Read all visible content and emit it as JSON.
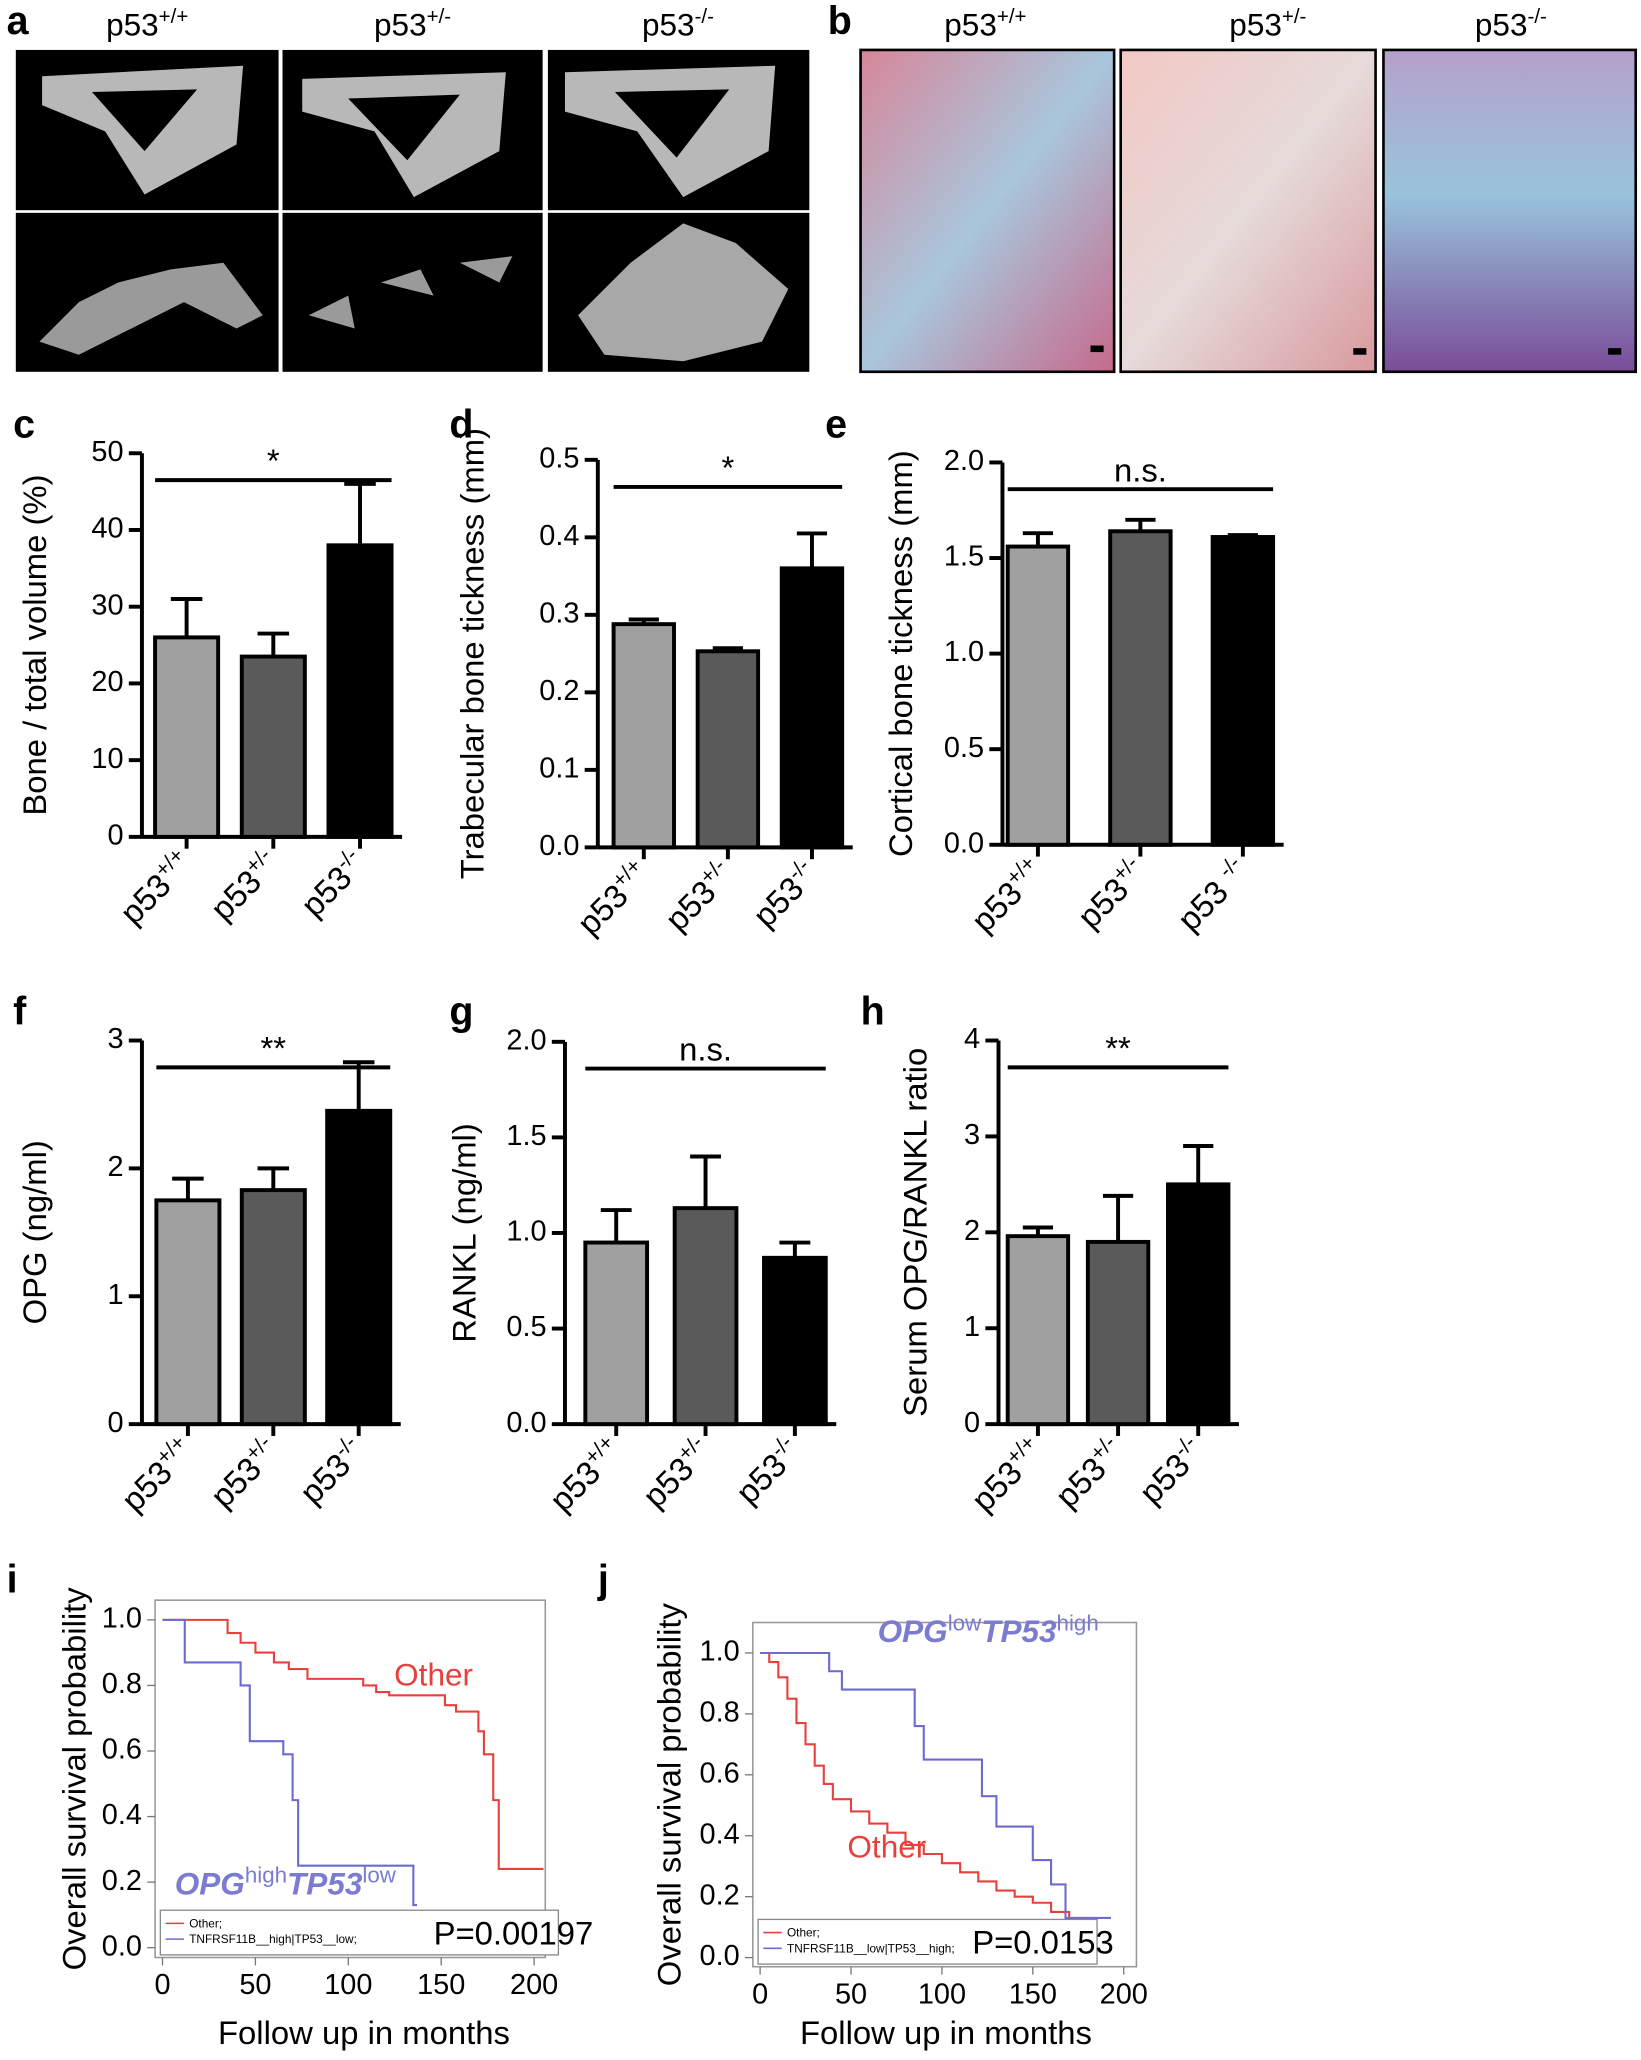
{
  "panel_a": {
    "label": "a",
    "headers": [
      "p53+/+",
      "p53+/-",
      "p53-/-"
    ]
  },
  "panel_b": {
    "label": "b",
    "headers": [
      "p53+/+",
      "p53+/-",
      "p53-/-"
    ]
  },
  "chart_data": [
    {
      "type": "bar",
      "label": "c",
      "y_label": "Bone / total volume (%)",
      "categories": [
        "p53+/+",
        "p53+/-",
        "p53-/-"
      ],
      "values": [
        26,
        23.5,
        38
      ],
      "errors": [
        5,
        3,
        8
      ],
      "colors": [
        "#a0a0a0",
        "#5a5a5a",
        "#000000"
      ],
      "ylim": [
        0,
        50
      ],
      "yticks": [
        0,
        10,
        20,
        30,
        40,
        50
      ],
      "annotation": "*"
    },
    {
      "type": "bar",
      "label": "d",
      "y_label": "Trabecular bone tickness (mm)",
      "categories": [
        "p53+/+",
        "p53+/-",
        "p53-/-"
      ],
      "values": [
        0.288,
        0.253,
        0.36
      ],
      "errors": [
        0.006,
        0.004,
        0.045
      ],
      "colors": [
        "#a0a0a0",
        "#5a5a5a",
        "#000000"
      ],
      "ylim": [
        0,
        0.5
      ],
      "yticks": [
        {
          "value": 0,
          "label": "0.0"
        },
        0.1,
        0.2,
        0.3,
        0.4,
        0.5
      ],
      "annotation": "*"
    },
    {
      "type": "bar",
      "label": "e",
      "y_label": "Cortical bone tickness (mm)",
      "categories": [
        "p53+/+",
        "p53+/-",
        "p53 -/-"
      ],
      "values": [
        1.56,
        1.64,
        1.61
      ],
      "errors": [
        0.07,
        0.06,
        0.01
      ],
      "colors": [
        "#a0a0a0",
        "#5a5a5a",
        "#000000"
      ],
      "ylim": [
        0,
        2
      ],
      "yticks": [
        {
          "value": 0,
          "label": "0.0"
        },
        0.5,
        {
          "value": 1,
          "label": "1.0"
        },
        1.5,
        {
          "value": 2,
          "label": "2.0"
        }
      ],
      "annotation": "n.s."
    },
    {
      "type": "bar",
      "label": "f",
      "y_label": "OPG (ng/ml)",
      "categories": [
        "p53+/+",
        "p53+/-",
        "p53-/-"
      ],
      "values": [
        1.75,
        1.83,
        2.45
      ],
      "errors": [
        0.17,
        0.17,
        0.38
      ],
      "colors": [
        "#a0a0a0",
        "#5a5a5a",
        "#000000"
      ],
      "ylim": [
        0,
        3
      ],
      "yticks": [
        0,
        1,
        2,
        3
      ],
      "annotation": "**"
    },
    {
      "type": "bar",
      "label": "g",
      "y_label": "RANKL (ng/ml)",
      "categories": [
        "p53+/+",
        "p53+/-",
        "p53-/-"
      ],
      "values": [
        0.95,
        1.13,
        0.87
      ],
      "errors": [
        0.17,
        0.27,
        0.08
      ],
      "colors": [
        "#a0a0a0",
        "#5a5a5a",
        "#000000"
      ],
      "ylim": [
        0,
        2
      ],
      "yticks": [
        {
          "value": 0,
          "label": "0.0"
        },
        0.5,
        {
          "value": 1,
          "label": "1.0"
        },
        1.5,
        {
          "value": 2,
          "label": "2.0"
        }
      ],
      "annotation": "n.s."
    },
    {
      "type": "bar",
      "label": "h",
      "y_label": "Serum OPG/RANKL ratio",
      "categories": [
        "p53+/+",
        "p53+/-",
        "p53-/-"
      ],
      "values": [
        1.96,
        1.9,
        2.5
      ],
      "errors": [
        0.09,
        0.48,
        0.4
      ],
      "colors": [
        "#a0a0a0",
        "#5a5a5a",
        "#000000"
      ],
      "ylim": [
        0,
        4
      ],
      "yticks": [
        0,
        1,
        2,
        3,
        4
      ],
      "annotation": "**"
    },
    {
      "type": "line",
      "label": "i",
      "y_label": "Overall survival probability",
      "x_label": "Follow up in months",
      "xlim": [
        -4,
        206
      ],
      "ylim": [
        -0.03,
        1.06
      ],
      "xticks": [
        0,
        50,
        100,
        150,
        200
      ],
      "yticks": [
        {
          "value": 0,
          "label": "0.0"
        },
        0.2,
        0.4,
        0.6,
        0.8,
        {
          "value": 1,
          "label": "1.0"
        }
      ],
      "p_value": "P=0.00197",
      "annotations": [
        {
          "parts": [
            "Other"
          ],
          "color": "#e8403c"
        },
        {
          "parts": [
            "OPG",
            "high",
            "TP53",
            "low"
          ],
          "color": "#7b7bd0"
        }
      ],
      "series": [
        {
          "name": "Other;",
          "color": "#e8403c",
          "x": [
            0,
            35,
            35,
            42,
            42,
            50,
            50,
            60,
            60,
            68,
            68,
            78,
            78,
            108,
            108,
            115,
            115,
            122,
            122,
            152,
            152,
            158,
            158,
            170,
            170,
            173,
            173,
            178,
            178,
            181,
            181,
            205
          ],
          "values": [
            1,
            1,
            0.96,
            0.96,
            0.93,
            0.93,
            0.9,
            0.9,
            0.87,
            0.87,
            0.85,
            0.85,
            0.82,
            0.82,
            0.8,
            0.8,
            0.78,
            0.78,
            0.77,
            0.77,
            0.74,
            0.74,
            0.72,
            0.72,
            0.66,
            0.66,
            0.59,
            0.59,
            0.45,
            0.45,
            0.24,
            0.24
          ]
        },
        {
          "name": "TNFRSF11B__high|TP53__low;",
          "color": "#6b6bd0",
          "x": [
            0,
            12,
            12,
            42,
            42,
            47,
            47,
            65,
            65,
            70,
            70,
            73,
            73,
            135,
            135,
            137
          ],
          "values": [
            1,
            1,
            0.87,
            0.87,
            0.8,
            0.8,
            0.63,
            0.63,
            0.59,
            0.59,
            0.45,
            0.45,
            0.25,
            0.25,
            0.13,
            0.13
          ]
        }
      ]
    },
    {
      "type": "line",
      "label": "j",
      "y_label": "Overall survival probability",
      "x_label": "Follow up in months",
      "xlim": [
        -4,
        207
      ],
      "ylim": [
        -0.03,
        1.1
      ],
      "xticks": [
        0,
        50,
        100,
        150,
        200
      ],
      "yticks": [
        {
          "value": 0,
          "label": "0.0"
        },
        0.2,
        0.4,
        0.6,
        0.8,
        {
          "value": 1,
          "label": "1.0"
        }
      ],
      "p_value": "P=0.0153",
      "annotations": [
        {
          "parts": [
            "OPG",
            "low",
            "TP53",
            "high"
          ],
          "color": "#7b7bd0"
        },
        {
          "parts": [
            "Other"
          ],
          "color": "#e8403c"
        }
      ],
      "series": [
        {
          "name": "Other;",
          "color": "#e8403c",
          "x": [
            0,
            5,
            5,
            10,
            10,
            15,
            15,
            20,
            20,
            25,
            25,
            30,
            30,
            35,
            35,
            40,
            40,
            50,
            50,
            60,
            60,
            70,
            70,
            80,
            80,
            90,
            90,
            100,
            100,
            110,
            110,
            120,
            120,
            130,
            130,
            140,
            140,
            150,
            150,
            160,
            160,
            170,
            170,
            185
          ],
          "values": [
            1,
            1,
            0.97,
            0.97,
            0.92,
            0.92,
            0.85,
            0.85,
            0.77,
            0.77,
            0.7,
            0.7,
            0.63,
            0.63,
            0.57,
            0.57,
            0.52,
            0.52,
            0.48,
            0.48,
            0.44,
            0.44,
            0.41,
            0.41,
            0.37,
            0.37,
            0.34,
            0.34,
            0.31,
            0.31,
            0.28,
            0.28,
            0.25,
            0.25,
            0.22,
            0.22,
            0.2,
            0.2,
            0.18,
            0.18,
            0.15,
            0.15,
            0.1,
            0.1
          ]
        },
        {
          "name": "TNFRSF11B__low|TP53__high;",
          "color": "#6b6bd0",
          "x": [
            0,
            38,
            38,
            45,
            45,
            85,
            85,
            90,
            90,
            122,
            122,
            130,
            130,
            150,
            150,
            160,
            160,
            168,
            168,
            193
          ],
          "values": [
            1,
            1,
            0.94,
            0.94,
            0.88,
            0.88,
            0.76,
            0.76,
            0.65,
            0.65,
            0.53,
            0.53,
            0.43,
            0.43,
            0.32,
            0.32,
            0.24,
            0.24,
            0.13,
            0.13
          ]
        }
      ]
    }
  ]
}
